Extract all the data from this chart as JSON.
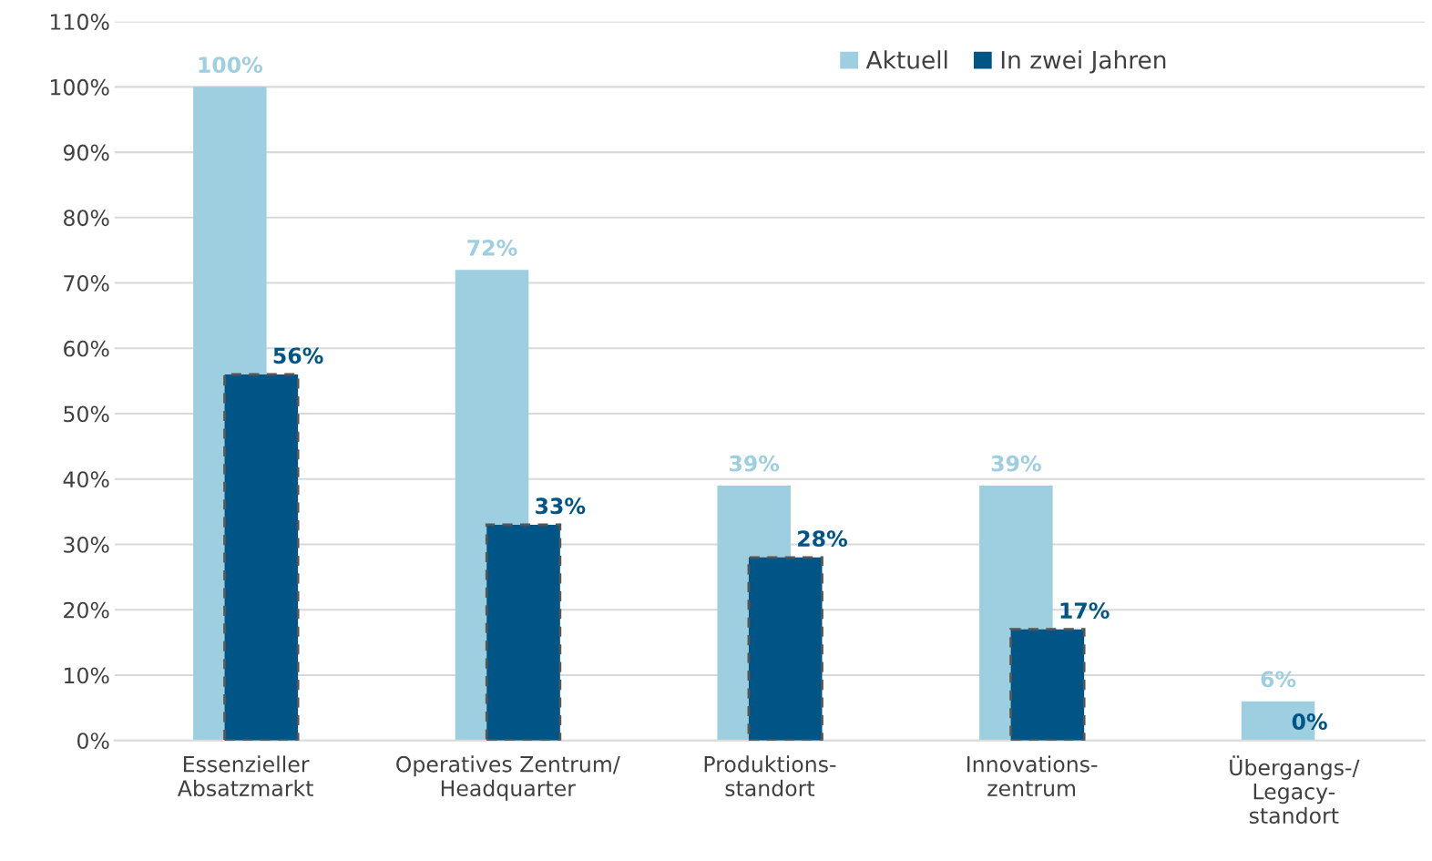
{
  "chart_data": {
    "type": "bar",
    "categories": [
      "Essenzieller\nAbsatzmarkt",
      "Operatives Zentrum/\nHeadquarter",
      "Produktions-\nstandort",
      "Innovations-\nzentrum",
      "Übergangs-/\nLegacy-\nstandort"
    ],
    "series": [
      {
        "name": "Aktuell",
        "color": "#9dcfe0",
        "values": [
          100,
          72,
          39,
          39,
          6
        ],
        "value_labels": [
          "100%",
          "72%",
          "39%",
          "39%",
          "6%"
        ]
      },
      {
        "name": "In zwei Jahren",
        "color": "#005587",
        "values": [
          56,
          33,
          28,
          17,
          0
        ],
        "value_labels": [
          "56%",
          "33%",
          "28%",
          "17%",
          "0%"
        ]
      }
    ],
    "ylim": [
      0,
      110
    ],
    "yticks": [
      {
        "value": 0,
        "label": "0%"
      },
      {
        "value": 10,
        "label": "10%"
      },
      {
        "value": 20,
        "label": "20%"
      },
      {
        "value": 30,
        "label": "30%"
      },
      {
        "value": 40,
        "label": "40%"
      },
      {
        "value": 50,
        "label": "50%"
      },
      {
        "value": 60,
        "label": "60%"
      },
      {
        "value": 70,
        "label": "70%"
      },
      {
        "value": 80,
        "label": "80%"
      },
      {
        "value": 90,
        "label": "90%"
      },
      {
        "value": 100,
        "label": "100%"
      },
      {
        "value": 110,
        "label": "110%"
      }
    ],
    "grid": "y",
    "legend": "top right"
  }
}
